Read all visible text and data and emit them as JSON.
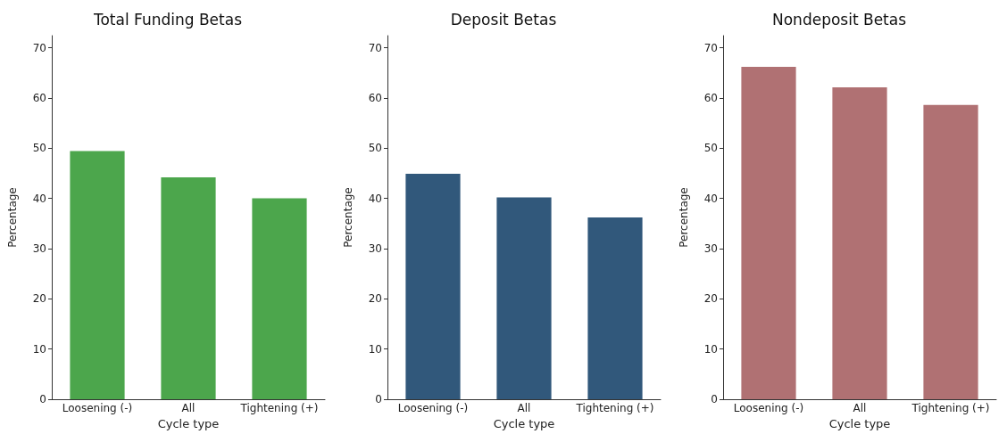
{
  "chart_data": [
    {
      "type": "bar",
      "title": "Total Funding Betas",
      "xlabel": "Cycle type",
      "ylabel": "Percentage",
      "categories": [
        "Loosening (-)",
        "All",
        "Tightening (+)"
      ],
      "values": [
        49.4,
        44.2,
        40.0
      ],
      "color": "#4ca64c",
      "ylim": [
        0,
        72.4
      ],
      "yticks": [
        0,
        10,
        20,
        30,
        40,
        50,
        60,
        70
      ],
      "grid": false
    },
    {
      "type": "bar",
      "title": "Deposit Betas",
      "xlabel": "Cycle type",
      "ylabel": "Percentage",
      "categories": [
        "Loosening (-)",
        "All",
        "Tightening (+)"
      ],
      "values": [
        44.9,
        40.2,
        36.2
      ],
      "color": "#31587b",
      "ylim": [
        0,
        72.4
      ],
      "yticks": [
        0,
        10,
        20,
        30,
        40,
        50,
        60,
        70
      ],
      "grid": false
    },
    {
      "type": "bar",
      "title": "Nondeposit Betas",
      "xlabel": "Cycle type",
      "ylabel": "Percentage",
      "categories": [
        "Loosening (-)",
        "All",
        "Tightening (+)"
      ],
      "values": [
        66.2,
        62.1,
        58.6
      ],
      "color": "#b07173",
      "ylim": [
        0,
        72.4
      ],
      "yticks": [
        0,
        10,
        20,
        30,
        40,
        50,
        60,
        70
      ],
      "grid": false
    }
  ]
}
